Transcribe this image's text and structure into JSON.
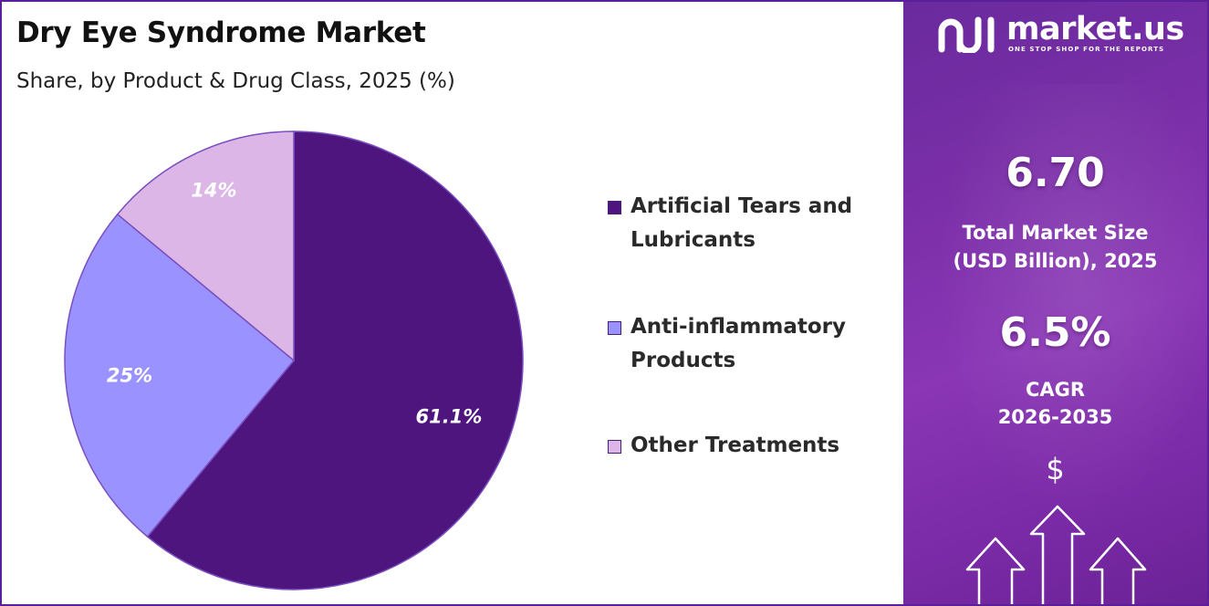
{
  "header": {
    "title": "Dry Eye Syndrome  Market",
    "subtitle": "Share, by Product & Drug Class, 2025 (%)"
  },
  "chart_data": {
    "type": "pie",
    "title": "Dry Eye Syndrome  Market",
    "subtitle": "Share, by Product & Drug Class, 2025 (%)",
    "legend_position": "right",
    "slices": [
      {
        "name": "Artificial Tears and Lubricants",
        "value": 61.1,
        "label": "61.1%",
        "color": "#4e157f"
      },
      {
        "name": "Anti-inflammatory Products",
        "value": 25,
        "label": "25%",
        "color": "#9a93ff"
      },
      {
        "name": "Other Treatments",
        "value": 14,
        "label": "14%",
        "color": "#dcb6e6"
      }
    ]
  },
  "legend": {
    "items": [
      {
        "line1": "Artificial Tears and",
        "line2": "Lubricants",
        "color": "#4e157f"
      },
      {
        "line1": "Anti-inflammatory",
        "line2": "Products",
        "color": "#9a93ff"
      },
      {
        "line1": "Other Treatments",
        "line2": "",
        "color": "#dcb6e6"
      }
    ]
  },
  "brand": {
    "name": "market.us",
    "tagline": "ONE STOP SHOP FOR THE REPORTS",
    "icon": "market-us-logo-icon"
  },
  "stats": {
    "market_size_value": "6.70",
    "market_size_label_1": "Total Market Size",
    "market_size_label_2": "(USD Billion), 2025",
    "cagr_value": "6.5%",
    "cagr_label_1": "CAGR",
    "cagr_label_2": "2026-2035",
    "currency_symbol": "$"
  },
  "colors": {
    "accent_purple": "#5b1f9a",
    "panel_purple": "#7b2fa8"
  }
}
